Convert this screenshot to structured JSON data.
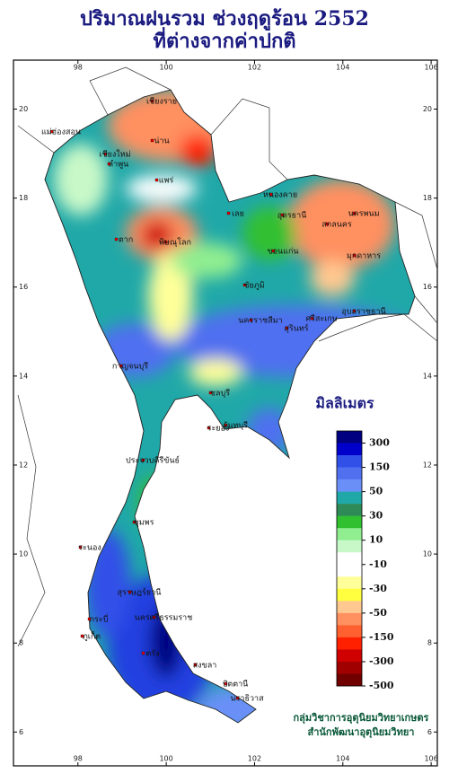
{
  "map": {
    "title": [
      "ปริมาณฝนรวม ช่วงฤดูร้อน 2552",
      "ที่ต่างจากค่าปกติ"
    ],
    "xlim": [
      96.54,
      106.14
    ],
    "ylim": [
      5.24,
      21.1
    ],
    "xticks": [
      98,
      100,
      102,
      104,
      106
    ],
    "yticks": [
      6,
      8,
      10,
      12,
      14,
      16,
      18,
      20
    ],
    "legend": {
      "title": "มิลลิเมตร",
      "labels": [
        300,
        150,
        50,
        30,
        10,
        -10,
        -30,
        -50,
        -150,
        -300,
        -500
      ],
      "colors": [
        "#000080",
        "#0000cd",
        "#3050e8",
        "#5070f0",
        "#6a90f8",
        "#20a8a8",
        "#2e8b57",
        "#30c030",
        "#90ee90",
        "#c8f8c8",
        "#ffffff",
        "#ffffff",
        "#ffff99",
        "#ffff40",
        "#ffc890",
        "#ff9060",
        "#ff6030",
        "#ff2000",
        "#d00000",
        "#a00000",
        "#700000"
      ]
    },
    "places": [
      "เชียงราย",
      "น่าน",
      "เชียงใหม่",
      "ลำพูน",
      "แพร่",
      "แม่ฮ่องสอน",
      "ตาก",
      "พิษณุโลก",
      "เลย",
      "หนองคาย",
      "อุดรธานี",
      "นครพนม",
      "สกลนคร",
      "มุกดาหาร",
      "ขอนแก่น",
      "ชัยภูมิ",
      "นครราชสีมา",
      "สุรินทร์",
      "อุบลราชธานี",
      "ศรีสะเกษ",
      "กาญจนบุรี",
      "ชลบุรี",
      "ระยอง",
      "จันทบุรี",
      "ประจวบคีรีขันธ์",
      "ชุมพร",
      "ระนอง",
      "สุราษฎร์ธานี",
      "ภูเก็ต",
      "กระบี่",
      "ตรัง",
      "สงขลา",
      "ปัตตานี",
      "นราธิวาส",
      "นครศรีธรรมราช"
    ],
    "credit": [
      "กลุ่มวิชาการอุตุนิยมวิทยาเกษตร",
      "สำนักพัฒนาอุตุนิยมวิทยา"
    ]
  }
}
